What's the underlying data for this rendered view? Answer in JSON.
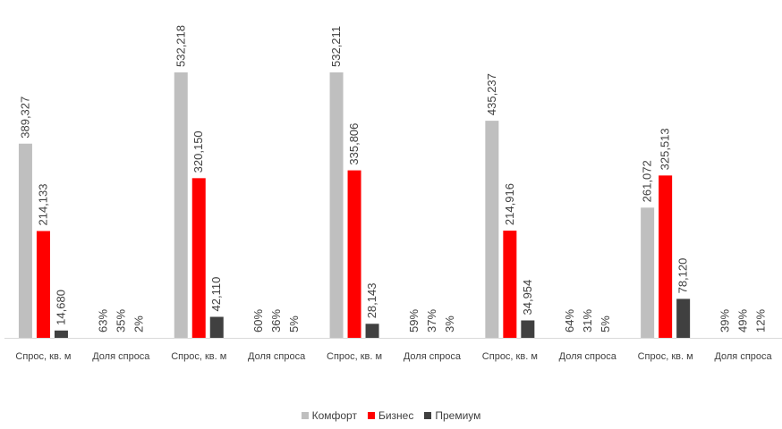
{
  "chart_data": {
    "type": "bar",
    "categories": [
      "Спрос, кв. м",
      "Доля спроса",
      "Спрос, кв. м",
      "Доля спроса",
      "Спрос, кв. м",
      "Доля спроса",
      "Спрос, кв. м",
      "Доля спроса",
      "Спрос, кв. м",
      "Доля спроса"
    ],
    "series": [
      {
        "name": "Комфорт",
        "color": "#BFBFBF",
        "values": [
          389327,
          63,
          532218,
          60,
          532211,
          59,
          435237,
          64,
          261072,
          39
        ],
        "labels": [
          "389,327",
          "63%",
          "532,218",
          "60%",
          "532,211",
          "59%",
          "435,237",
          "64%",
          "261,072",
          "39%"
        ]
      },
      {
        "name": "Бизнес",
        "color": "#FF0000",
        "values": [
          214133,
          35,
          320150,
          36,
          335806,
          37,
          214916,
          31,
          325513,
          49
        ],
        "labels": [
          "214,133",
          "35%",
          "320,150",
          "36%",
          "335,806",
          "37%",
          "214,916",
          "31%",
          "325,513",
          "49%"
        ]
      },
      {
        "name": "Премиум",
        "color": "#404040",
        "values": [
          14680,
          2,
          42110,
          5,
          28143,
          3,
          34954,
          5,
          78120,
          12
        ],
        "labels": [
          "14,680",
          "2%",
          "42,110",
          "5%",
          "28,143",
          "3%",
          "34,954",
          "5%",
          "78,120",
          "12%"
        ]
      }
    ],
    "ylim": [
      0,
      532218
    ],
    "grid": false,
    "legend": "bottom"
  }
}
